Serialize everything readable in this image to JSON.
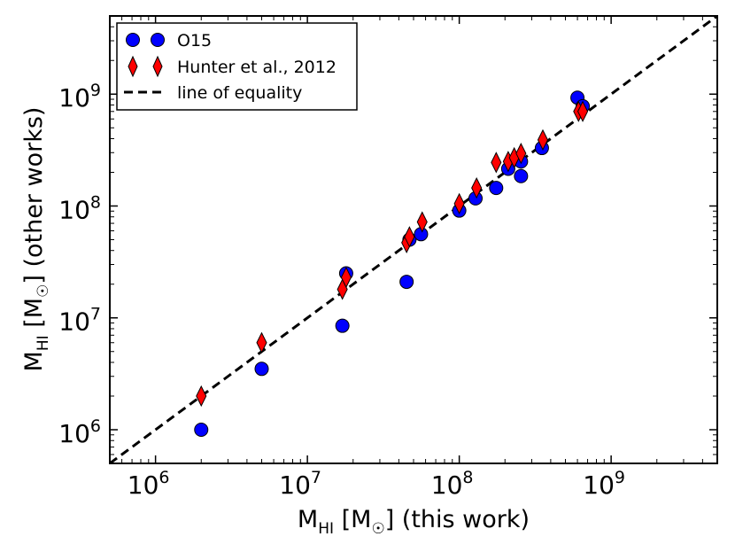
{
  "chart_data": {
    "type": "scatter",
    "xscale": "log",
    "yscale": "log",
    "xlim": [
      500000,
      5000000000
    ],
    "ylim": [
      500000,
      5000000000
    ],
    "xlabel": {
      "main": "M",
      "sub": "HI",
      "bracket_open": " [M",
      "sun_sub": "☉",
      "bracket_close": "] (this work)"
    },
    "ylabel": {
      "main": "M",
      "sub": "HI",
      "bracket_open": " [M",
      "sun_sub": "☉",
      "bracket_close": "] (other works)"
    },
    "x_ticks": [
      {
        "value": 1000000,
        "base": "10",
        "exp": "6"
      },
      {
        "value": 10000000,
        "base": "10",
        "exp": "7"
      },
      {
        "value": 100000000,
        "base": "10",
        "exp": "8"
      },
      {
        "value": 1000000000,
        "base": "10",
        "exp": "9"
      }
    ],
    "y_ticks": [
      {
        "value": 1000000,
        "base": "10",
        "exp": "6"
      },
      {
        "value": 10000000,
        "base": "10",
        "exp": "7"
      },
      {
        "value": 100000000,
        "base": "10",
        "exp": "8"
      },
      {
        "value": 1000000000,
        "base": "10",
        "exp": "9"
      }
    ],
    "legend": {
      "position": "upper-left"
    },
    "series": [
      {
        "name": "O15",
        "marker": "circle",
        "color": "#0000ff",
        "points": [
          {
            "x": 2000000,
            "y": 1000000
          },
          {
            "x": 5000000,
            "y": 3500000
          },
          {
            "x": 17000000,
            "y": 8500000
          },
          {
            "x": 18000000,
            "y": 25000000
          },
          {
            "x": 45000000,
            "y": 21000000
          },
          {
            "x": 47000000,
            "y": 50000000
          },
          {
            "x": 56000000,
            "y": 56000000
          },
          {
            "x": 100000000,
            "y": 91000000
          },
          {
            "x": 128000000,
            "y": 117000000
          },
          {
            "x": 175000000,
            "y": 145000000
          },
          {
            "x": 210000000,
            "y": 215000000
          },
          {
            "x": 255000000,
            "y": 185000000
          },
          {
            "x": 255000000,
            "y": 250000000
          },
          {
            "x": 350000000,
            "y": 330000000
          },
          {
            "x": 600000000,
            "y": 930000000
          },
          {
            "x": 650000000,
            "y": 780000000
          }
        ]
      },
      {
        "name": "Hunter et al., 2012",
        "marker": "diamond",
        "color": "#ff0000",
        "points": [
          {
            "x": 2000000,
            "y": 2000000
          },
          {
            "x": 5000000,
            "y": 6000000
          },
          {
            "x": 17000000,
            "y": 18000000
          },
          {
            "x": 18000000,
            "y": 23000000
          },
          {
            "x": 45000000,
            "y": 47000000
          },
          {
            "x": 47000000,
            "y": 53000000
          },
          {
            "x": 57000000,
            "y": 72000000
          },
          {
            "x": 100000000,
            "y": 105000000
          },
          {
            "x": 130000000,
            "y": 145000000
          },
          {
            "x": 175000000,
            "y": 245000000
          },
          {
            "x": 210000000,
            "y": 250000000
          },
          {
            "x": 230000000,
            "y": 270000000
          },
          {
            "x": 255000000,
            "y": 295000000
          },
          {
            "x": 355000000,
            "y": 390000000
          },
          {
            "x": 610000000,
            "y": 700000000
          },
          {
            "x": 650000000,
            "y": 700000000
          }
        ]
      },
      {
        "name": "line of equality",
        "marker": "dashed-line",
        "color": "#000000",
        "line": [
          [
            500000,
            500000
          ],
          [
            5000000000,
            5000000000
          ]
        ]
      }
    ]
  }
}
